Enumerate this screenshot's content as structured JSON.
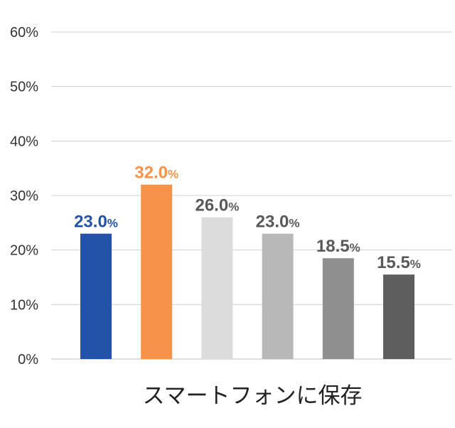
{
  "chart_data": {
    "type": "bar",
    "title": "",
    "xlabel": "スマートフォンに保存",
    "ylabel": "",
    "ylim": [
      0,
      60
    ],
    "yticks": [
      0,
      10,
      20,
      30,
      40,
      50,
      60
    ],
    "ytick_labels": [
      "0%",
      "10%",
      "20%",
      "30%",
      "40%",
      "50%",
      "60%"
    ],
    "grid": true,
    "legend": "none",
    "value_unit": "%",
    "series": [
      {
        "values": [
          23.0,
          32.0,
          26.0,
          23.0,
          18.5,
          15.5
        ],
        "value_labels": [
          "23.0",
          "32.0",
          "26.0",
          "23.0",
          "18.5",
          "15.5"
        ],
        "colors": [
          "#2253a9",
          "#f7924a",
          "#dcdcdc",
          "#b8b8b8",
          "#8f8f8f",
          "#5e5e5e"
        ],
        "label_colors": [
          "#2253a9",
          "#f7924a",
          "#595959",
          "#595959",
          "#595959",
          "#595959"
        ]
      }
    ]
  }
}
